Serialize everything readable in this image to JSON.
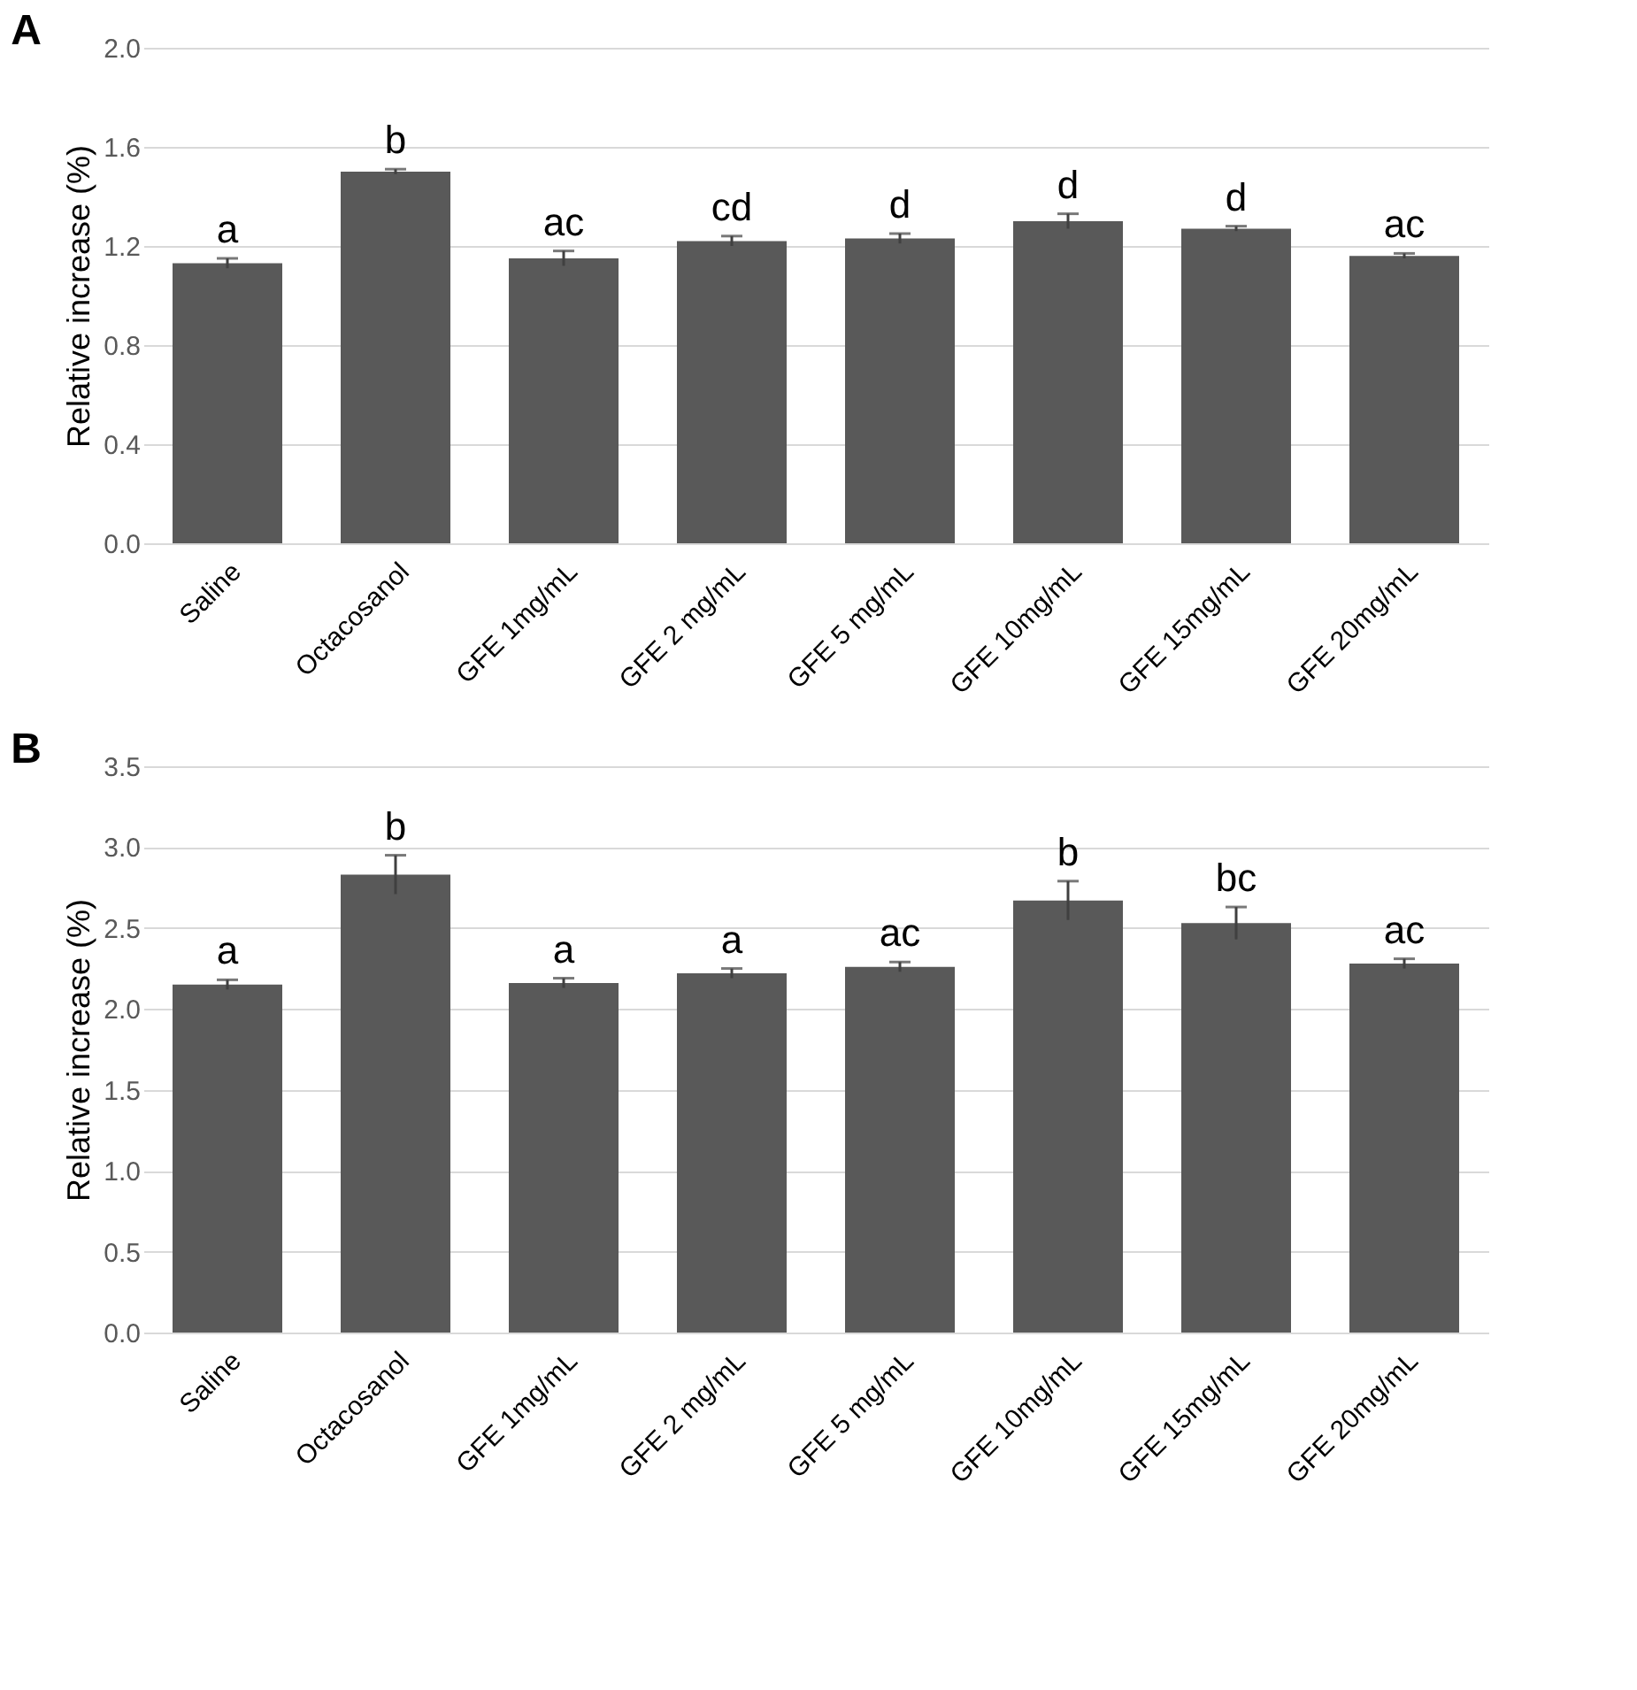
{
  "chart_data": [
    {
      "type": "bar",
      "title": "A",
      "ylabel": "Relative increase (%)",
      "categories": [
        "Saline",
        "Octacosanol",
        "GFE 1mg/mL",
        "GFE 2 mg/mL",
        "GFE 5 mg/mL",
        "GFE 10mg/mL",
        "GFE 15mg/mL",
        "GFE 20mg/mL"
      ],
      "values": [
        1.13,
        1.5,
        1.15,
        1.22,
        1.23,
        1.3,
        1.27,
        1.16
      ],
      "errors": [
        0.02,
        0.01,
        0.03,
        0.02,
        0.02,
        0.03,
        0.01,
        0.01
      ],
      "color": "#595959",
      "ylim": [
        0,
        2.0
      ],
      "yticks": [
        {
          "value": 0,
          "label": "0.0"
        },
        0.4,
        0.8,
        1.2,
        1.6,
        {
          "value": 2.0,
          "label": "2.0"
        }
      ],
      "grid": "y",
      "annotations": [
        {
          "text": "a",
          "x": "Saline",
          "y": 1.15
        },
        {
          "text": "b",
          "x": "Octacosanol",
          "y": 1.51
        },
        {
          "text": "ac",
          "x": "GFE 1mg/mL",
          "y": 1.18
        },
        {
          "text": "cd",
          "x": "GFE 2 mg/mL",
          "y": 1.24
        },
        {
          "text": "d",
          "x": "GFE 5 mg/mL",
          "y": 1.25
        },
        {
          "text": "d",
          "x": "GFE 10mg/mL",
          "y": 1.33
        },
        {
          "text": "d",
          "x": "GFE 15mg/mL",
          "y": 1.28
        },
        {
          "text": "ac",
          "x": "GFE 20mg/mL",
          "y": 1.17
        }
      ]
    },
    {
      "type": "bar",
      "title": "B",
      "ylabel": "Relative increase (%)",
      "categories": [
        "Saline",
        "Octacosanol",
        "GFE 1mg/mL",
        "GFE 2 mg/mL",
        "GFE 5 mg/mL",
        "GFE 10mg/mL",
        "GFE 15mg/mL",
        "GFE 20mg/mL"
      ],
      "values": [
        2.15,
        2.83,
        2.16,
        2.22,
        2.26,
        2.67,
        2.53,
        2.28
      ],
      "errors": [
        0.03,
        0.12,
        0.03,
        0.03,
        0.03,
        0.12,
        0.1,
        0.03
      ],
      "color": "#595959",
      "ylim": [
        0,
        3.5
      ],
      "yticks": [
        {
          "value": 0,
          "label": "0.0"
        },
        0.5,
        {
          "value": 1.0,
          "label": "1.0"
        },
        1.5,
        {
          "value": 2.0,
          "label": "2.0"
        },
        2.5,
        {
          "value": 3.0,
          "label": "3.0"
        },
        3.5
      ],
      "grid": "y",
      "annotations": [
        {
          "text": "a",
          "x": "Saline",
          "y": 2.18
        },
        {
          "text": "b",
          "x": "Octacosanol",
          "y": 2.95
        },
        {
          "text": "a",
          "x": "GFE 1mg/mL",
          "y": 2.19
        },
        {
          "text": "a",
          "x": "GFE 2 mg/mL",
          "y": 2.25
        },
        {
          "text": "ac",
          "x": "GFE 5 mg/mL",
          "y": 2.29
        },
        {
          "text": "b",
          "x": "GFE 10mg/mL",
          "y": 2.79
        },
        {
          "text": "bc",
          "x": "GFE 15mg/mL",
          "y": 2.63
        },
        {
          "text": "ac",
          "x": "GFE 20mg/mL",
          "y": 2.31
        }
      ]
    }
  ]
}
